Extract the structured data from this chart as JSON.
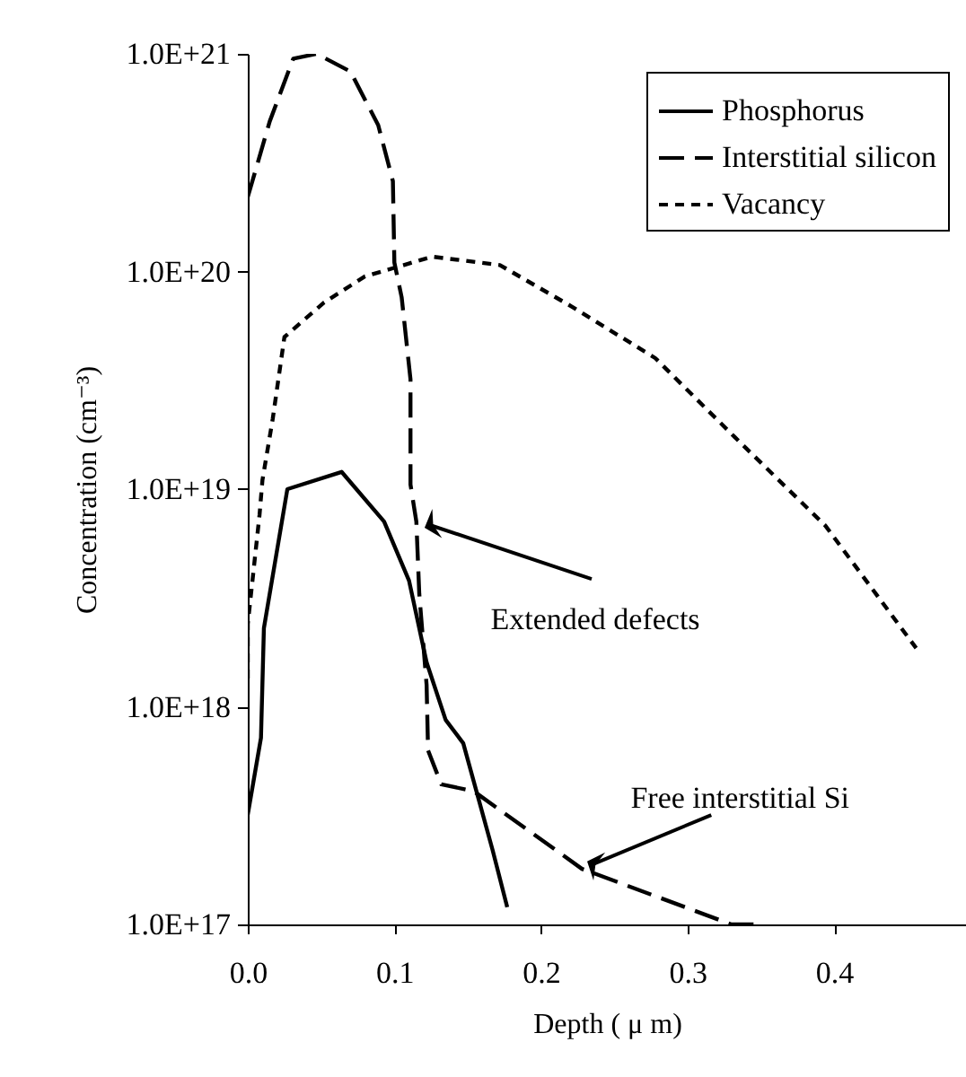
{
  "chart_data": {
    "type": "line",
    "xlabel": "Depth ( μ m)",
    "ylabel": "Concentration (cm⁻³)",
    "log": "y",
    "grid": false,
    "legend": "top right",
    "marker": "none",
    "xlim": [
      0,
      0.49
    ],
    "xticks": [
      {
        "value": 0,
        "label": "0.0"
      },
      {
        "value": 0.1,
        "label": "0.1"
      },
      {
        "value": 0.2,
        "label": "0.2"
      },
      {
        "value": 0.3,
        "label": "0.3"
      },
      {
        "value": 0.4,
        "label": "0.4"
      }
    ],
    "ylim": [
      1e+17,
      1e+21
    ],
    "yticks": [
      {
        "value": 1e+17,
        "label": "1.0E+17"
      },
      {
        "value": 1e+18,
        "label": "1.0E+18"
      },
      {
        "value": 1e+19,
        "label": "1.0E+19"
      },
      {
        "value": 1e+20,
        "label": "1.0E+20"
      },
      {
        "value": 1e+21,
        "label": "1.0E+21"
      }
    ],
    "series": [
      {
        "name": "Phosphorus",
        "color": "#000000",
        "line_style": "solid",
        "x": [
          0,
          0.009,
          0.011,
          0.027,
          0.064,
          0.093,
          0.11,
          0.122,
          0.135,
          0.147,
          0.167,
          0.177
        ],
        "values": [
          3.2e+17,
          7.2e+17,
          2.3e+18,
          1e+19,
          1.2e+19,
          7.1e+18,
          3.8e+18,
          1.6e+18,
          8.7e+17,
          6.8e+17,
          2.2e+17,
          1.2e+17
        ]
      },
      {
        "name": "Interstitial silicon",
        "color": "#000000",
        "line_style": "dashed",
        "x": [
          0,
          0.015,
          0.031,
          0.047,
          0.07,
          0.089,
          0.099,
          0.1,
          0.105,
          0.111,
          0.111,
          0.115,
          0.117,
          0.122,
          0.123,
          0.132,
          0.154,
          0.228,
          0.33,
          0.348
        ],
        "values": [
          2.2e+20,
          4.9e+20,
          9.5e+20,
          1e+21,
          8.3e+20,
          4.7e+20,
          2.6e+20,
          1.1e+20,
          7.6e+19,
          3.2e+19,
          1.05e+19,
          7.1e+18,
          3.3e+18,
          1.26e+18,
          6.3e+17,
          4.4e+17,
          4.1e+17,
          1.8e+17,
          1e+17,
          1e+17
        ]
      },
      {
        "name": "Vacancy",
        "color": "#000000",
        "line_style": "dotted",
        "x": [
          0,
          0,
          0.008,
          0.01,
          0.017,
          0.025,
          0.052,
          0.08,
          0.126,
          0.172,
          0.221,
          0.278,
          0.332,
          0.394,
          0.456
        ],
        "values": [
          1.35e+18,
          2.4e+18,
          7.6e+18,
          1.1e+19,
          2.1e+19,
          5e+19,
          7.2e+19,
          9.5e+19,
          1.17e+20,
          1.07e+20,
          6.9e+19,
          4e+19,
          1.74e+19,
          6.8e+18,
          1.86e+18
        ]
      }
    ],
    "annotations": [
      {
        "text": "Extended defects",
        "x": 0.117,
        "y": 7.1e+18
      },
      {
        "text": "Free interstitial Si",
        "x": 0.228,
        "y": 1.8e+17
      }
    ]
  }
}
